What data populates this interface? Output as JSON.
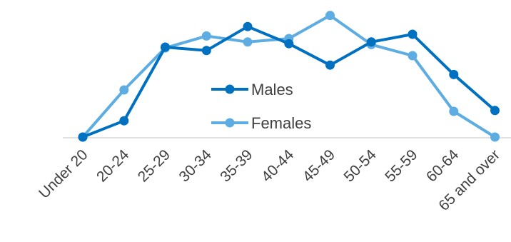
{
  "chart_data": {
    "type": "line",
    "categories": [
      "Under 20",
      "20-24",
      "25-29",
      "30-34",
      "35-39",
      "40-44",
      "45-49",
      "50-54",
      "55-59",
      "60-64",
      "65 and over"
    ],
    "series": [
      {
        "name": "Males",
        "color": "#0070C0",
        "values": [
          0,
          9.5,
          52.5,
          50.5,
          64.5,
          54.5,
          42,
          55.5,
          60,
          36.5,
          15.5
        ]
      },
      {
        "name": "Females",
        "color": "#5DADE2",
        "values": [
          0,
          27.5,
          52,
          59,
          55.5,
          57.5,
          71,
          54,
          47.5,
          15,
          0
        ]
      }
    ],
    "ylim": [
      0,
      75
    ],
    "grid": false,
    "legend_position": "center",
    "title": "",
    "xlabel": "",
    "ylabel": ""
  }
}
